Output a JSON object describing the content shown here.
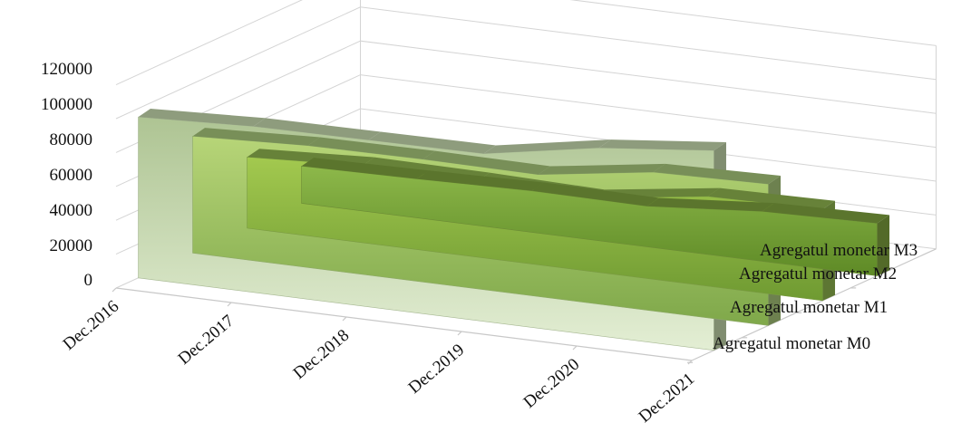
{
  "chart_data": {
    "type": "area",
    "style": "3d-area",
    "categories": [
      "Dec.2016",
      "Dec.2017",
      "Dec.2018",
      "Dec.2019",
      "Dec.2020",
      "Dec.2021"
    ],
    "y_ticks": [
      "0",
      "20000",
      "40000",
      "60000",
      "80000",
      "100000",
      "120000"
    ],
    "ylim": [
      0,
      120000
    ],
    "grid": true,
    "series": [
      {
        "name": "Agregatul monetar M0",
        "values": [
          22000,
          23000,
          24500,
          24000,
          29500,
          31000
        ],
        "color": "#7fa33f"
      },
      {
        "name": "Agregatul monetar M1",
        "values": [
          42000,
          45500,
          45000,
          43500,
          53000,
          54000
        ],
        "color": "#8fb54f"
      },
      {
        "name": "Agregatul monetar M2",
        "values": [
          69000,
          72000,
          72500,
          72000,
          82000,
          83500
        ],
        "color": "#a7c77a"
      },
      {
        "name": "Agregatul monetar M3",
        "values": [
          95000,
          98000,
          98500,
          99000,
          111000,
          118000
        ],
        "color": "#c5d9ad"
      }
    ]
  }
}
